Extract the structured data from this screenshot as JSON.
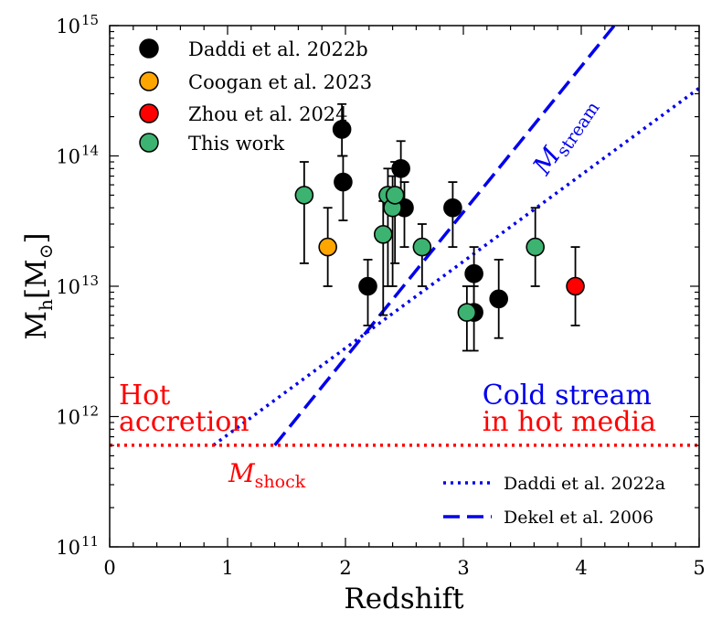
{
  "chart_data": {
    "type": "scatter",
    "xlabel": "Redshift",
    "ylabel": "Mh[M⊙]",
    "xlim": [
      0,
      5
    ],
    "ylim_log10": [
      11,
      15
    ],
    "log_y": true,
    "x_ticks": [
      0,
      1,
      2,
      3,
      4,
      5
    ],
    "y_tick_labels": [
      {
        "exp": 11,
        "base": "10",
        "sup": "11"
      },
      {
        "exp": 12,
        "base": "10",
        "sup": "12"
      },
      {
        "exp": 13,
        "base": "10",
        "sup": "13"
      },
      {
        "exp": 14,
        "base": "10",
        "sup": "14"
      },
      {
        "exp": 15,
        "base": "10",
        "sup": "15"
      }
    ],
    "grid": false,
    "series": [
      {
        "name": "Daddi et al. 2022b",
        "color": "#000000",
        "points": [
          {
            "x": 1.97,
            "y": 160000000000000.0,
            "yerr": [
              100000000000000.0,
              250000000000000.0
            ]
          },
          {
            "x": 1.98,
            "y": 63000000000000.0,
            "yerr": [
              32000000000000.0,
              100000000000000.0
            ]
          },
          {
            "x": 2.19,
            "y": 10000000000000.0,
            "yerr": [
              5000000000000.0,
              16000000000000.0
            ]
          },
          {
            "x": 2.47,
            "y": 80000000000000.0,
            "yerr": [
              40000000000000.0,
              130000000000000.0
            ]
          },
          {
            "x": 2.5,
            "y": 40000000000000.0,
            "yerr": [
              20000000000000.0,
              63000000000000.0
            ]
          },
          {
            "x": 2.91,
            "y": 40000000000000.0,
            "yerr": [
              20000000000000.0,
              63000000000000.0
            ]
          },
          {
            "x": 3.09,
            "y": 12500000000000.0,
            "yerr": [
              6300000000000.0,
              20000000000000.0
            ]
          },
          {
            "x": 3.09,
            "y": 6300000000000.0,
            "yerr": [
              3200000000000.0,
              10000000000000.0
            ]
          },
          {
            "x": 3.3,
            "y": 8000000000000.0,
            "yerr": [
              4000000000000.0,
              16000000000000.0
            ]
          }
        ]
      },
      {
        "name": "Coogan et al. 2023",
        "color": "#ffa500",
        "points": [
          {
            "x": 1.85,
            "y": 20000000000000.0,
            "yerr": [
              10000000000000.0,
              40000000000000.0
            ]
          }
        ]
      },
      {
        "name": "Zhou et al. 2024",
        "color": "#ff0000",
        "points": [
          {
            "x": 3.95,
            "y": 10000000000000.0,
            "yerr": [
              5000000000000.0,
              20000000000000.0
            ]
          }
        ]
      },
      {
        "name": "This work",
        "color": "#3cb371",
        "points": [
          {
            "x": 1.65,
            "y": 50000000000000.0,
            "yerr": [
              15000000000000.0,
              90000000000000.0
            ]
          },
          {
            "x": 2.32,
            "y": 25000000000000.0,
            "yerr": [
              6000000000000.0,
              45000000000000.0
            ]
          },
          {
            "x": 2.36,
            "y": 50000000000000.0,
            "yerr": [
              10000000000000.0,
              80000000000000.0
            ]
          },
          {
            "x": 2.4,
            "y": 40000000000000.0,
            "yerr": [
              10000000000000.0,
              70000000000000.0
            ]
          },
          {
            "x": 2.42,
            "y": 50000000000000.0,
            "yerr": [
              15000000000000.0,
              90000000000000.0
            ]
          },
          {
            "x": 2.65,
            "y": 20000000000000.0,
            "yerr": [
              10000000000000.0,
              30000000000000.0
            ]
          },
          {
            "x": 3.03,
            "y": 6300000000000.0,
            "yerr": [
              3200000000000.0,
              10000000000000.0
            ]
          },
          {
            "x": 3.61,
            "y": 20000000000000.0,
            "yerr": [
              10000000000000.0,
              40000000000000.0
            ]
          }
        ]
      }
    ],
    "lines": [
      {
        "name": "Daddi et al. 2022a",
        "style": "dotted",
        "color": "#0000ee",
        "log10_y_at": [
          {
            "x": 0.88,
            "y": 11.78
          },
          {
            "x": 5.0,
            "y": 14.52
          }
        ]
      },
      {
        "name": "Dekel et al. 2006",
        "style": "dashed",
        "color": "#0000ee",
        "log10_y_at": [
          {
            "x": 1.4,
            "y": 11.78
          },
          {
            "x": 4.28,
            "y": 15.0
          }
        ]
      },
      {
        "name": "M_shock",
        "style": "dotted",
        "color": "#ff0000",
        "log10_y_at": [
          {
            "x": 0,
            "y": 11.78
          },
          {
            "x": 5.0,
            "y": 11.78
          }
        ]
      }
    ],
    "legend_points_position": "top-left",
    "legend_lines_position": "bottom-right",
    "annotations": {
      "hot_line1": "Hot",
      "hot_line2": "accretion",
      "cold_line1": "Cold stream",
      "cold_line2": "in hot media",
      "stream_base": "M",
      "stream_sub": "stream",
      "shock_base": "M",
      "shock_sub": "shock"
    },
    "colors": {
      "blue": "#0000ee",
      "red": "#ff0000"
    }
  }
}
